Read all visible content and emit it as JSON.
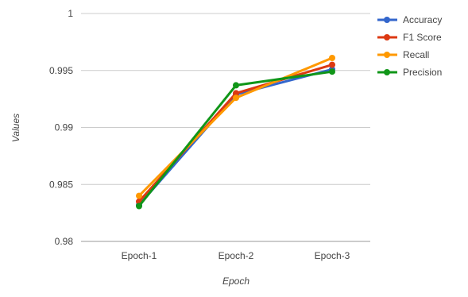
{
  "chart_data": {
    "type": "line",
    "title": "",
    "xlabel": "Epoch",
    "ylabel": "Values",
    "categories": [
      "Epoch-1",
      "Epoch-2",
      "Epoch-3"
    ],
    "ylim": [
      0.98,
      1.0
    ],
    "yticks": [
      0.98,
      0.985,
      0.99,
      0.995,
      1
    ],
    "ytick_labels": [
      "0.98",
      "0.985",
      "0.99",
      "0.995",
      "1"
    ],
    "grid": true,
    "legend_position": "right",
    "series": [
      {
        "name": "Accuracy",
        "color": "#3366cc",
        "values": [
          0.9832,
          0.9929,
          0.9951
        ]
      },
      {
        "name": "F1 Score",
        "color": "#dc3912",
        "values": [
          0.9835,
          0.993,
          0.9955
        ]
      },
      {
        "name": "Recall",
        "color": "#ff9900",
        "values": [
          0.984,
          0.9926,
          0.9961
        ]
      },
      {
        "name": "Precision",
        "color": "#109618",
        "values": [
          0.9831,
          0.9937,
          0.9949
        ]
      }
    ]
  }
}
